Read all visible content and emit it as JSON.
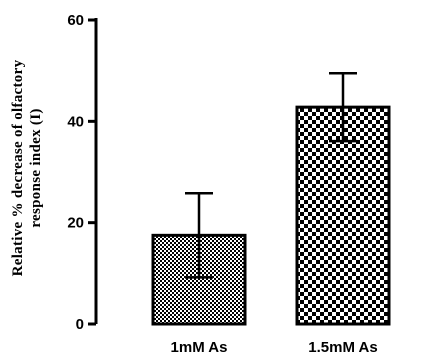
{
  "chart_data": {
    "type": "bar",
    "categories": [
      "1mM As",
      "1.5mM As"
    ],
    "values": [
      17.5,
      42.8
    ],
    "error_bars": [
      8.3,
      6.7
    ],
    "ylabel_lines": [
      "Relative % decrease of olfactory",
      "response index (I)"
    ],
    "ylim": [
      0,
      60
    ],
    "yticks": [
      0,
      20,
      40,
      60
    ],
    "ytick_labels": [
      "0",
      "20",
      "40",
      "60"
    ],
    "patterns": [
      "fine-checker",
      "coarse-checker"
    ],
    "grid": false
  }
}
